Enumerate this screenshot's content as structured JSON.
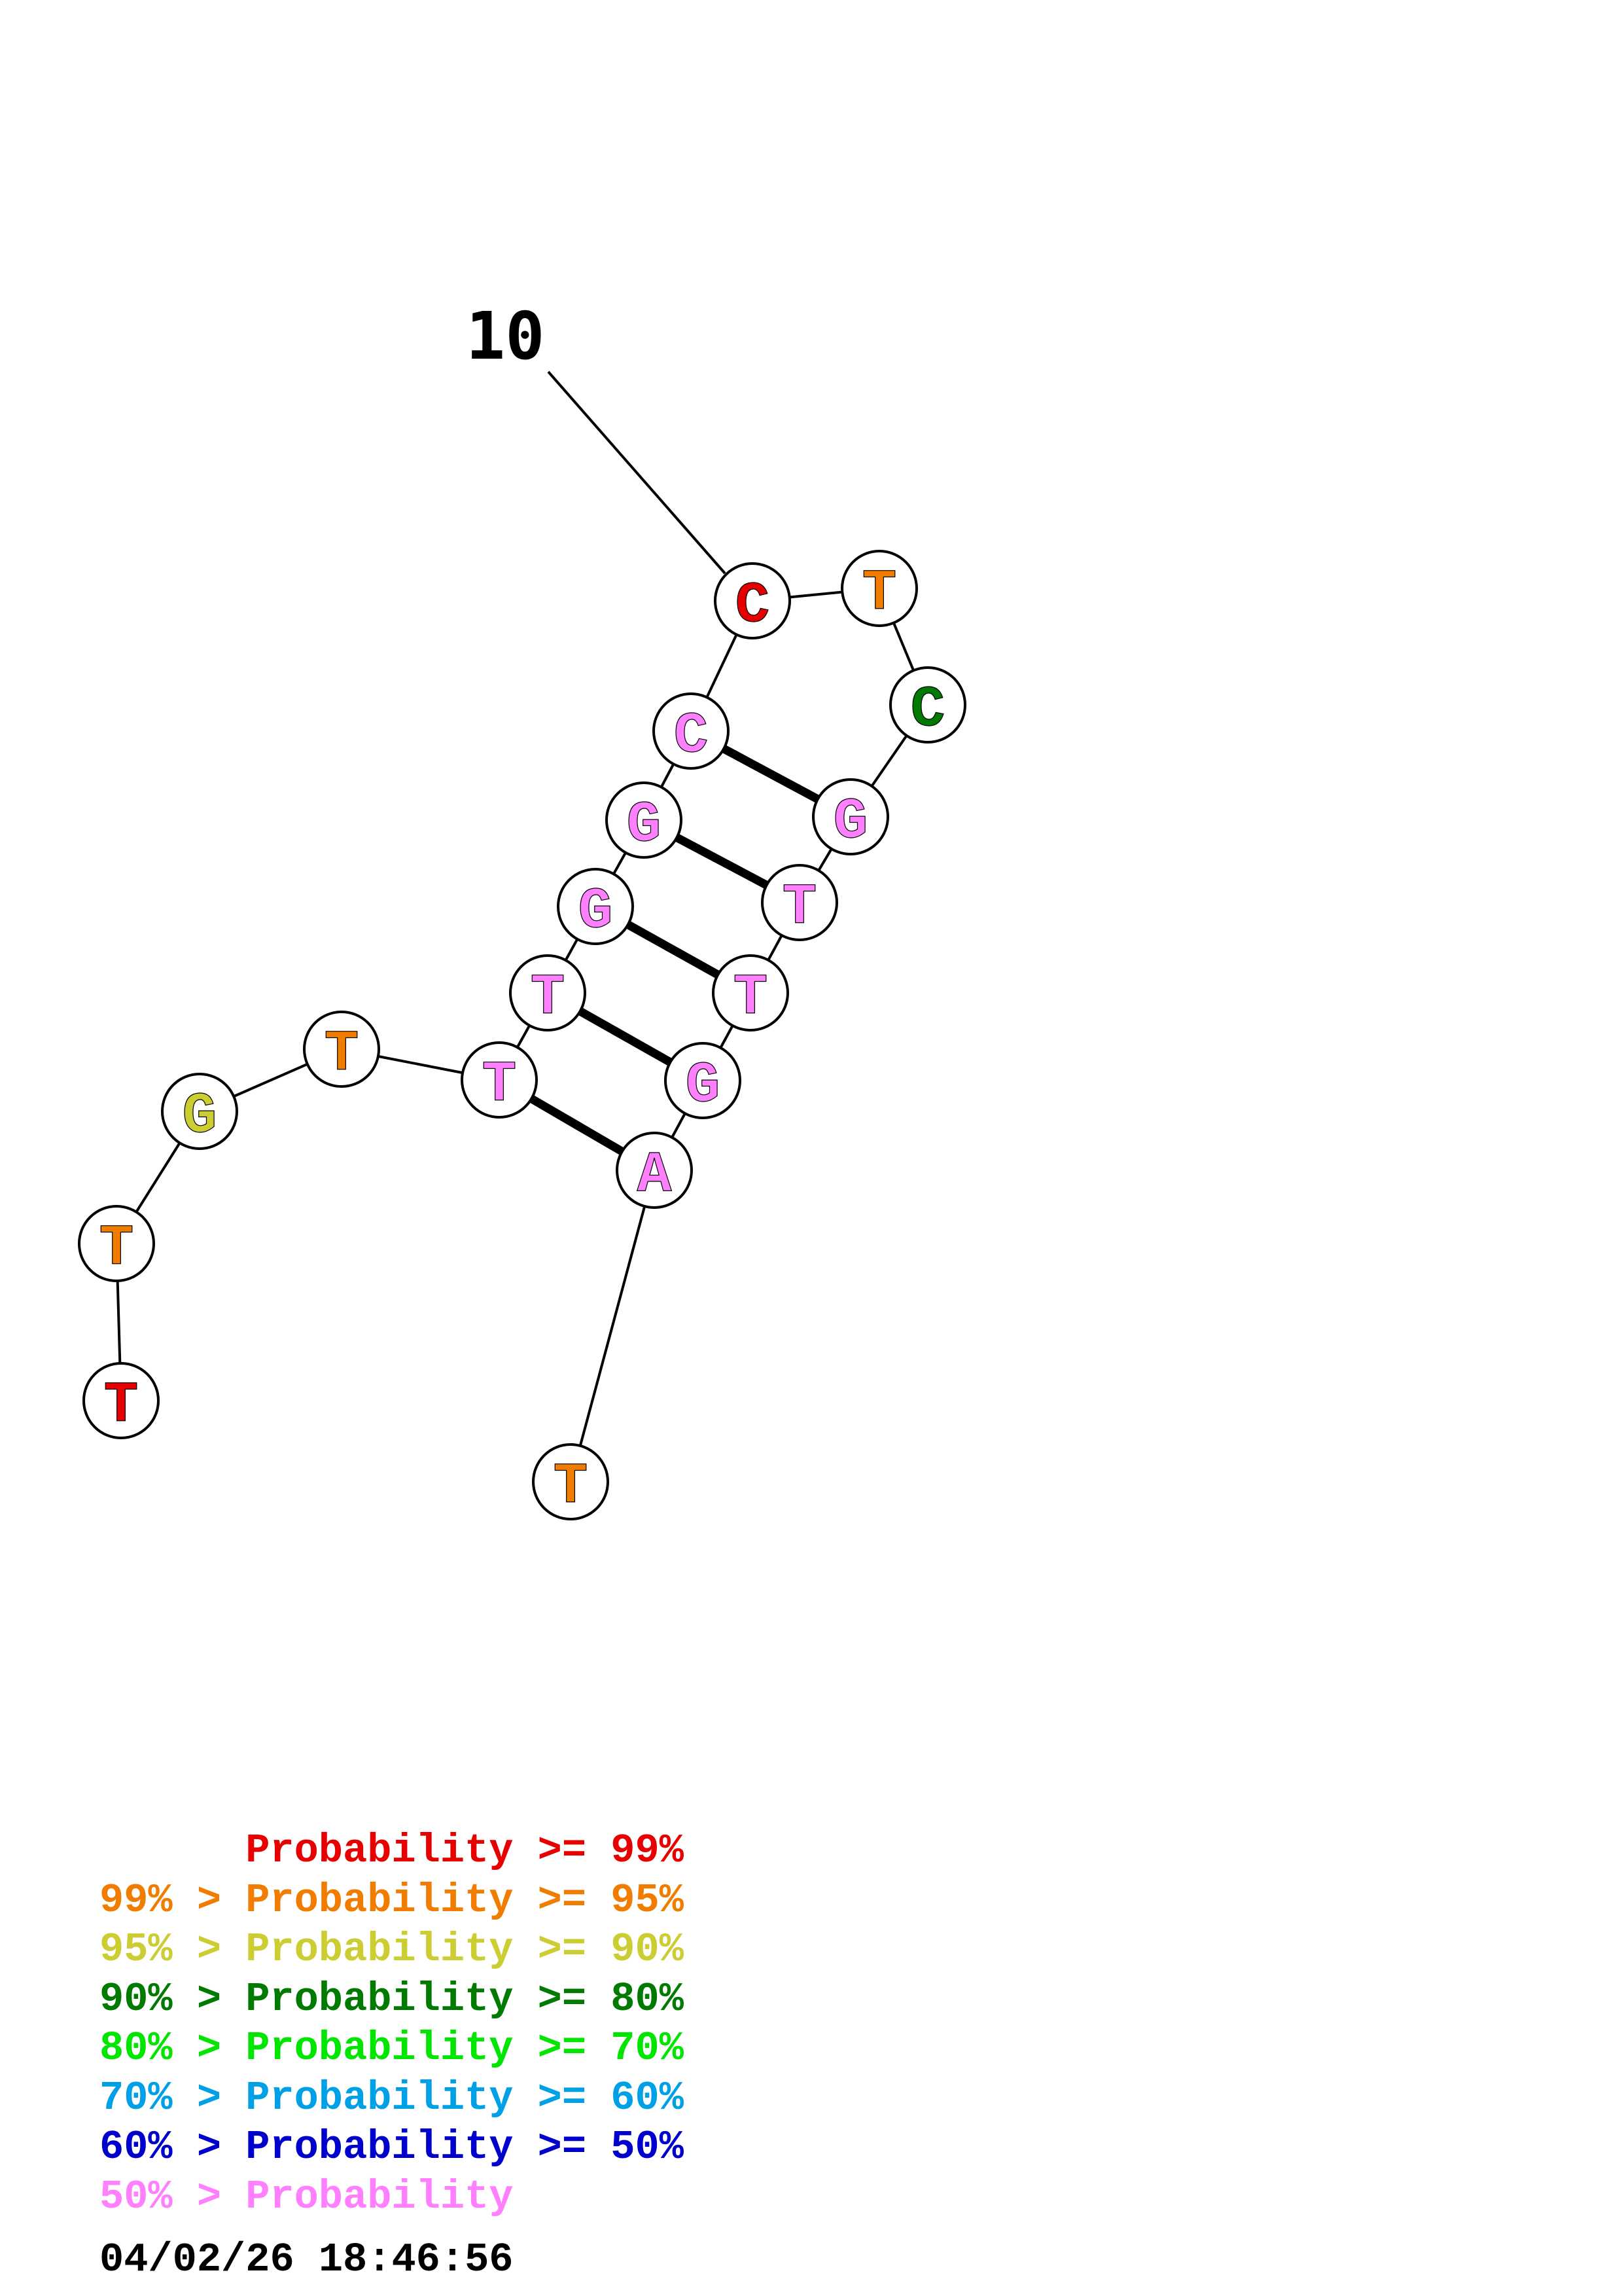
{
  "structure": {
    "position_label": "10",
    "nucleotides": [
      {
        "letter": "T",
        "color": "#e60000"
      },
      {
        "letter": "T",
        "color": "#f07c00"
      },
      {
        "letter": "G",
        "color": "#cccc33"
      },
      {
        "letter": "T",
        "color": "#f07c00"
      },
      {
        "letter": "T",
        "color": "#ff80ff"
      },
      {
        "letter": "T",
        "color": "#ff80ff"
      },
      {
        "letter": "G",
        "color": "#ff80ff"
      },
      {
        "letter": "G",
        "color": "#ff80ff"
      },
      {
        "letter": "C",
        "color": "#ff80ff"
      },
      {
        "letter": "C",
        "color": "#e60000"
      },
      {
        "letter": "T",
        "color": "#f07c00"
      },
      {
        "letter": "C",
        "color": "#007a00"
      },
      {
        "letter": "G",
        "color": "#ff80ff"
      },
      {
        "letter": "T",
        "color": "#ff80ff"
      },
      {
        "letter": "T",
        "color": "#ff80ff"
      },
      {
        "letter": "G",
        "color": "#ff80ff"
      },
      {
        "letter": "A",
        "color": "#ff80ff"
      },
      {
        "letter": "T",
        "color": "#f07c00"
      }
    ],
    "base_pairs": [
      [
        5,
        17
      ],
      [
        6,
        16
      ],
      [
        7,
        15
      ],
      [
        8,
        14
      ],
      [
        9,
        13
      ]
    ]
  },
  "legend": [
    {
      "prefix": "",
      "text": "Probability >= 99%",
      "color": "#e60000"
    },
    {
      "prefix": "99% > ",
      "text": "Probability >= 95%",
      "color": "#f07c00"
    },
    {
      "prefix": "95% > ",
      "text": "Probability >= 90%",
      "color": "#cccc33"
    },
    {
      "prefix": "90% > ",
      "text": "Probability >= 80%",
      "color": "#007a00"
    },
    {
      "prefix": "80% > ",
      "text": "Probability >= 70%",
      "color": "#00e600"
    },
    {
      "prefix": "70% > ",
      "text": "Probability >= 60%",
      "color": "#00a0e6"
    },
    {
      "prefix": "60% > ",
      "text": "Probability >= 50%",
      "color": "#0000cc"
    },
    {
      "prefix": "50% > ",
      "text": "Probability",
      "color": "#ff80ff"
    }
  ],
  "timestamp": "04/02/26 18:46:56"
}
